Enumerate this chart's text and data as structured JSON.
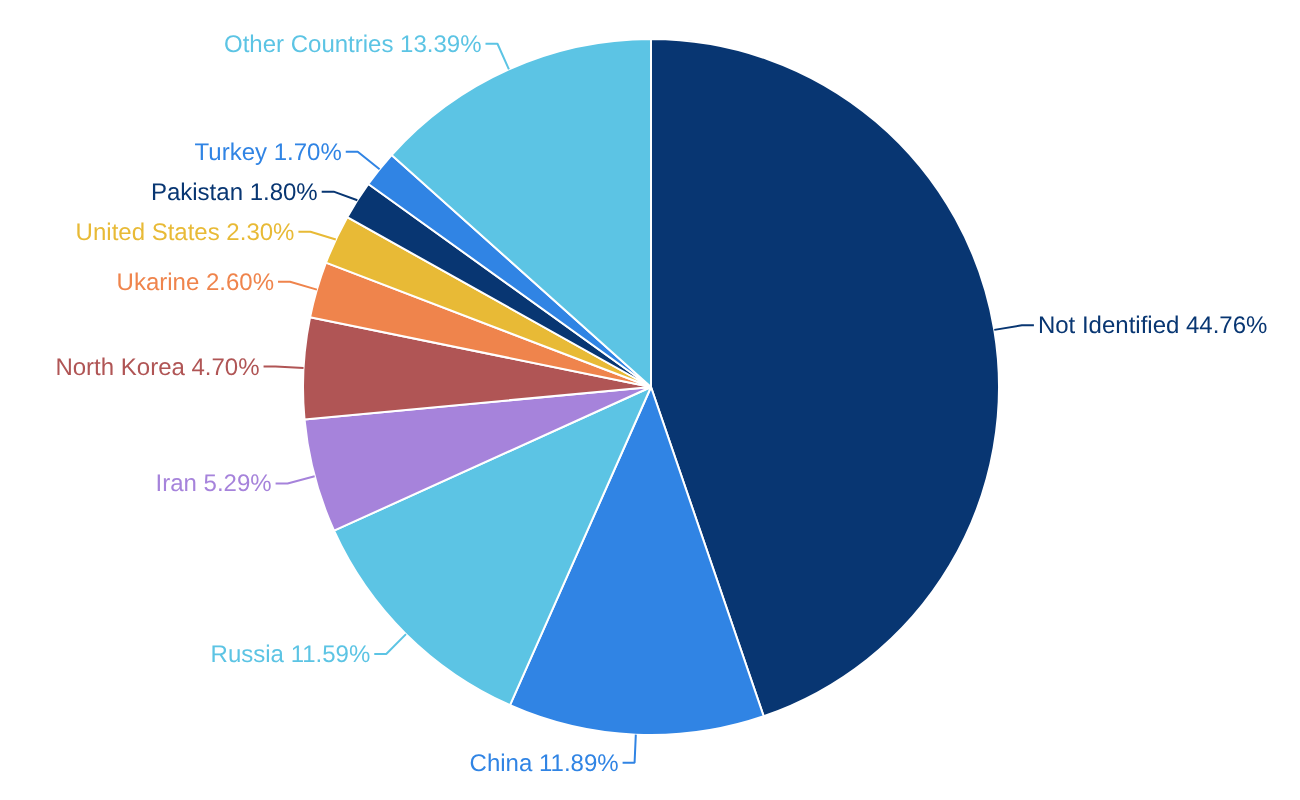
{
  "chart_data": {
    "type": "pie",
    "categories": [
      "Not Identified",
      "China",
      "Russia",
      "Iran",
      "North Korea",
      "Ukarine",
      "United States",
      "Pakistan",
      "Turkey",
      "Other Countries"
    ],
    "values": [
      44.76,
      11.89,
      11.59,
      5.29,
      4.7,
      2.6,
      2.3,
      1.8,
      1.7,
      13.39
    ],
    "value_labels": [
      "44.76%",
      "11.89%",
      "11.59%",
      "5.29%",
      "4.70%",
      "2.60%",
      "2.30%",
      "1.80%",
      "1.70%",
      "13.39%"
    ],
    "colors": [
      "#083672",
      "#3084e4",
      "#5cc4e4",
      "#a683db",
      "#b05555",
      "#ef844c",
      "#e8ba36",
      "#083672",
      "#3084e4",
      "#5cc4e4"
    ]
  }
}
